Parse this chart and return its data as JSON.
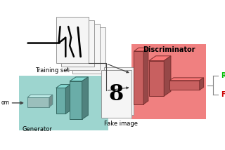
{
  "bg_color": "#ffffff",
  "generator_box_color": "#9dd5cf",
  "discriminator_box_color": "#f08080",
  "label_training_set": "Training set",
  "label_generator": "Generator",
  "label_fake_image": "Fake image",
  "label_discriminator": "Discriminator",
  "label_random": "om",
  "label_real": "R",
  "label_fake": "F",
  "real_color": "#00bb00",
  "fake_color": "#cc0000",
  "box_edge_color": "#888888",
  "arrow_color": "#444444",
  "gen_block_face": "#6aada8",
  "gen_block_top": "#88ccc6",
  "gen_block_side": "#4a8a85",
  "gen_block_edge": "#336660",
  "disc_block_face": "#c86060",
  "disc_block_top": "#e08080",
  "disc_block_side": "#a04040",
  "disc_block_edge": "#803030",
  "page_color": "#f5f5f5",
  "page_edge": "#999999"
}
